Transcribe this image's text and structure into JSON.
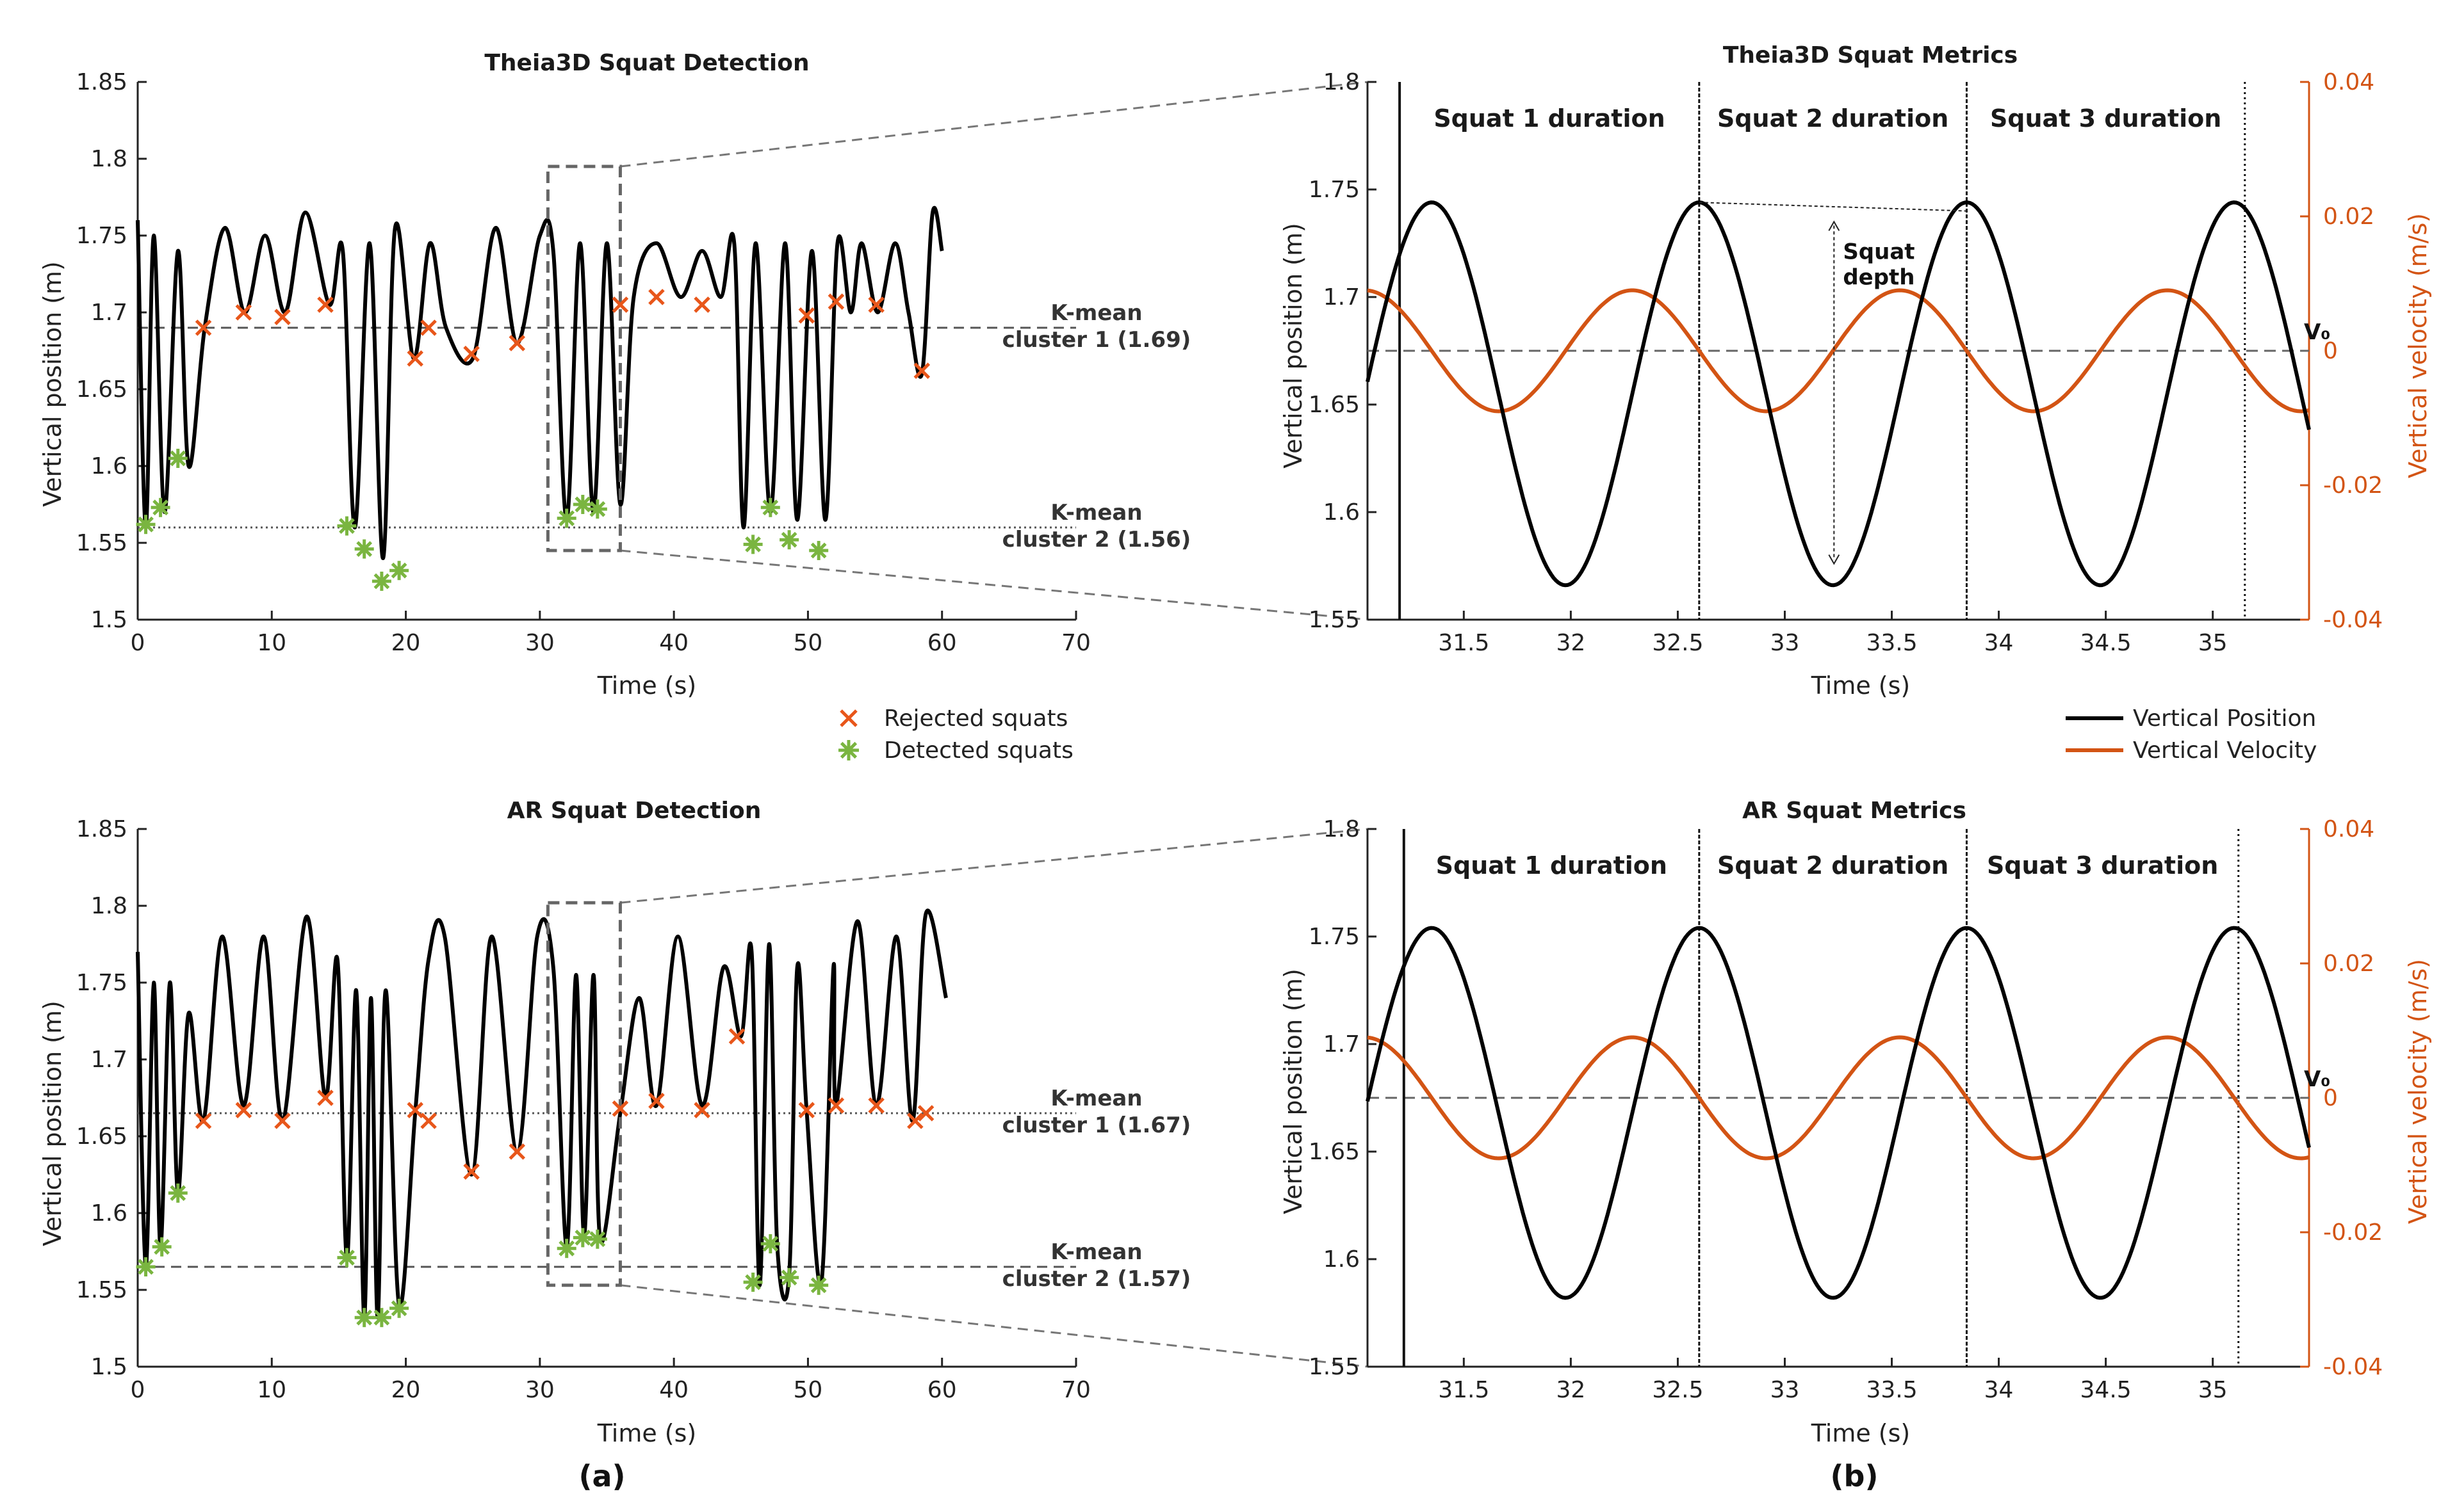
{
  "figure": {
    "panel_a_label": "(a)",
    "panel_b_label": "(b)"
  },
  "colors": {
    "position": "#000000",
    "velocity": "#d35414",
    "rejected": "#e8561a",
    "detected": "#7ab540",
    "box": "#666666"
  },
  "legend_a": {
    "rejected": "Rejected squats",
    "detected": "Detected squats"
  },
  "legend_b": {
    "position": "Vertical Position",
    "velocity": "Vertical Velocity"
  },
  "chart_data": [
    {
      "id": "theia_detection",
      "type": "line",
      "title": "Theia3D Squat Detection",
      "xlabel": "Time (s)",
      "ylabel": "Vertical position (m)",
      "xlim": [
        0,
        70
      ],
      "ylim": [
        1.5,
        1.85
      ],
      "xticks": [
        "0",
        "10",
        "20",
        "30",
        "40",
        "50",
        "60",
        "70"
      ],
      "yticks": [
        "1.5",
        "1.55",
        "1.6",
        "1.65",
        "1.7",
        "1.75",
        "1.8",
        "1.85"
      ],
      "series": [
        {
          "x": [
            0,
            0.6,
            1.2,
            2,
            3,
            3.8,
            5,
            6.5,
            8,
            9.5,
            11,
            12.5,
            14.3,
            15.3,
            16.2,
            17.3,
            18.3,
            19.2,
            20.6,
            21.8,
            23,
            25,
            26.7,
            28.3,
            30,
            31,
            32,
            33,
            34,
            35,
            36,
            37,
            38.7,
            40.5,
            42.1,
            43.5,
            44.5,
            45.2,
            46.1,
            47.2,
            48.3,
            49.2,
            50.3,
            51.3,
            52.2,
            53.2,
            54,
            55.2,
            56.5,
            57.5,
            58.5,
            59.3,
            60
          ],
          "y": [
            1.76,
            1.56,
            1.75,
            1.57,
            1.74,
            1.6,
            1.69,
            1.755,
            1.7,
            1.75,
            1.7,
            1.765,
            1.705,
            1.74,
            1.56,
            1.745,
            1.54,
            1.755,
            1.67,
            1.745,
            1.69,
            1.67,
            1.755,
            1.68,
            1.75,
            1.74,
            1.565,
            1.745,
            1.57,
            1.745,
            1.575,
            1.71,
            1.745,
            1.71,
            1.74,
            1.71,
            1.745,
            1.56,
            1.745,
            1.57,
            1.745,
            1.565,
            1.74,
            1.565,
            1.745,
            1.7,
            1.745,
            1.7,
            1.745,
            1.7,
            1.66,
            1.765,
            1.74
          ]
        }
      ],
      "rejected": {
        "x": [
          4.9,
          7.9,
          10.8,
          14,
          20.7,
          21.7,
          24.9,
          28.3,
          36,
          38.7,
          42.1,
          49.9,
          52.1,
          55.1,
          58.5
        ],
        "y": [
          1.69,
          1.7,
          1.697,
          1.705,
          1.67,
          1.69,
          1.673,
          1.68,
          1.705,
          1.71,
          1.705,
          1.698,
          1.707,
          1.705,
          1.662
        ]
      },
      "detected": {
        "x": [
          0.6,
          1.7,
          3,
          15.6,
          16.9,
          18.2,
          19.5,
          32,
          33.2,
          34.3,
          45.9,
          47.2,
          48.6,
          50.8
        ],
        "y": [
          1.562,
          1.573,
          1.605,
          1.561,
          1.546,
          1.525,
          1.532,
          1.566,
          1.575,
          1.572,
          1.549,
          1.573,
          1.552,
          1.545
        ]
      },
      "clusters": [
        {
          "y": 1.69,
          "label": [
            "K-mean",
            "cluster 1 (1.69)"
          ],
          "style": "dashed"
        },
        {
          "y": 1.56,
          "label": [
            "K-mean",
            "cluster 2 (1.56)"
          ],
          "style": "dotted"
        }
      ],
      "zoom_box": {
        "x": [
          30.6,
          36.0
        ],
        "y": [
          1.545,
          1.795
        ]
      }
    },
    {
      "id": "ar_detection",
      "type": "line",
      "title": "AR Squat Detection",
      "xlabel": "Time (s)",
      "ylabel": "Vertical position (m)",
      "xlim": [
        0,
        70
      ],
      "ylim": [
        1.5,
        1.85
      ],
      "xticks": [
        "0",
        "10",
        "20",
        "30",
        "40",
        "50",
        "60",
        "70"
      ],
      "yticks": [
        "1.5",
        "1.55",
        "1.6",
        "1.65",
        "1.7",
        "1.75",
        "1.8",
        "1.85"
      ],
      "series": [
        {
          "x": [
            0,
            0.6,
            1.2,
            1.7,
            2.4,
            3,
            3.8,
            4.9,
            6.3,
            7.9,
            9.4,
            10.8,
            12.6,
            14,
            14.9,
            15.6,
            16.3,
            16.9,
            17.4,
            17.9,
            18.5,
            19.5,
            20.7,
            21.7,
            22.9,
            24.9,
            26.4,
            28.3,
            29.8,
            31,
            32,
            32.7,
            33.3,
            34,
            34.5,
            36,
            37.4,
            38.7,
            40.3,
            42.1,
            43.7,
            45,
            45.8,
            46.4,
            47.1,
            47.7,
            48.6,
            49.2,
            49.9,
            51,
            51.9,
            52.1,
            53.7,
            55.1,
            56.6,
            57.8,
            58.8,
            60.3
          ],
          "y": [
            1.77,
            1.565,
            1.75,
            1.578,
            1.75,
            1.613,
            1.73,
            1.66,
            1.78,
            1.67,
            1.78,
            1.66,
            1.793,
            1.675,
            1.765,
            1.57,
            1.745,
            1.532,
            1.74,
            1.532,
            1.745,
            1.54,
            1.665,
            1.765,
            1.78,
            1.625,
            1.78,
            1.64,
            1.78,
            1.76,
            1.578,
            1.755,
            1.585,
            1.755,
            1.583,
            1.665,
            1.74,
            1.67,
            1.78,
            1.67,
            1.76,
            1.715,
            1.77,
            1.553,
            1.775,
            1.58,
            1.56,
            1.76,
            1.667,
            1.555,
            1.76,
            1.67,
            1.79,
            1.67,
            1.78,
            1.66,
            1.795,
            1.74
          ]
        }
      ],
      "rejected": {
        "x": [
          4.9,
          7.9,
          10.8,
          14,
          20.7,
          21.7,
          24.9,
          28.3,
          36,
          38.7,
          42.1,
          44.7,
          49.9,
          52.1,
          55.1,
          58,
          58.8
        ],
        "y": [
          1.66,
          1.667,
          1.66,
          1.675,
          1.667,
          1.66,
          1.627,
          1.64,
          1.668,
          1.673,
          1.667,
          1.715,
          1.667,
          1.67,
          1.67,
          1.66,
          1.665
        ]
      },
      "detected": {
        "x": [
          0.6,
          1.8,
          3,
          15.6,
          16.9,
          18.2,
          19.5,
          32,
          33.2,
          34.3,
          45.9,
          47.2,
          48.6,
          50.8
        ],
        "y": [
          1.565,
          1.578,
          1.613,
          1.571,
          1.532,
          1.532,
          1.538,
          1.577,
          1.584,
          1.583,
          1.555,
          1.58,
          1.558,
          1.553
        ]
      },
      "clusters": [
        {
          "y": 1.665,
          "label": [
            "K-mean",
            "cluster 1 (1.67)"
          ],
          "style": "dotted"
        },
        {
          "y": 1.565,
          "label": [
            "K-mean",
            "cluster 2 (1.57)"
          ],
          "style": "dashed"
        }
      ],
      "zoom_box": {
        "x": [
          30.6,
          36.0
        ],
        "y": [
          1.553,
          1.802
        ]
      }
    },
    {
      "id": "theia_metrics",
      "type": "line",
      "title": "Theia3D Squat Metrics",
      "xlabel": "Time (s)",
      "ylabel": "Vertical position (m)",
      "y2label": "Vertical velocity (m/s)",
      "xlim": [
        31.05,
        35.45
      ],
      "ylim": [
        1.55,
        1.8
      ],
      "y2lim": [
        -0.04,
        0.04
      ],
      "xticks": [
        "31.5",
        "32",
        "32.5",
        "33",
        "33.5",
        "34",
        "34.5",
        "35"
      ],
      "yticks": [
        "1.55",
        "1.6",
        "1.65",
        "1.7",
        "1.75",
        "1.8"
      ],
      "y2ticks": [
        "-0.04",
        "-0.02",
        "0",
        "0.02",
        "0.04"
      ],
      "position": {
        "mean": 1.655,
        "amp": 0.089,
        "period": 1.25,
        "phase_peak": 31.35
      },
      "velocity": {
        "amp": 0.009,
        "lag": 0.3125,
        "offset": 0
      },
      "v0_label": "V₀",
      "zero_line": 0,
      "boundaries": [
        31.2,
        32.6,
        33.85,
        35.15
      ],
      "durations": [
        "Squat 1 duration",
        "Squat 2 duration",
        "Squat 3 duration"
      ],
      "depth_label": [
        "Squat",
        "depth"
      ],
      "depth_arrow": {
        "x": 33.23,
        "y_top": 1.735,
        "y_bottom": 1.576
      }
    },
    {
      "id": "ar_metrics",
      "type": "line",
      "title": "AR Squat Metrics",
      "xlabel": "Time (s)",
      "ylabel": "Vertical position (m)",
      "y2label": "Vertical velocity (m/s)",
      "xlim": [
        31.05,
        35.45
      ],
      "ylim": [
        1.55,
        1.8
      ],
      "y2lim": [
        -0.04,
        0.04
      ],
      "xticks": [
        "31.5",
        "32",
        "32.5",
        "33",
        "33.5",
        "34",
        "34.5",
        "35"
      ],
      "yticks": [
        "1.55",
        "1.6",
        "1.65",
        "1.7",
        "1.75",
        "1.8"
      ],
      "y2ticks": [
        "-0.04",
        "-0.02",
        "0",
        "0.02",
        "0.04"
      ],
      "position": {
        "mean": 1.668,
        "amp": 0.086,
        "period": 1.25,
        "phase_peak": 31.35
      },
      "velocity": {
        "amp": 0.009,
        "lag": 0.3125,
        "offset": 0
      },
      "v0_label": "V₀",
      "zero_line": 0,
      "boundaries": [
        31.22,
        32.6,
        33.85,
        35.12
      ],
      "durations": [
        "Squat 1 duration",
        "Squat 2 duration",
        "Squat 3 duration"
      ]
    }
  ]
}
